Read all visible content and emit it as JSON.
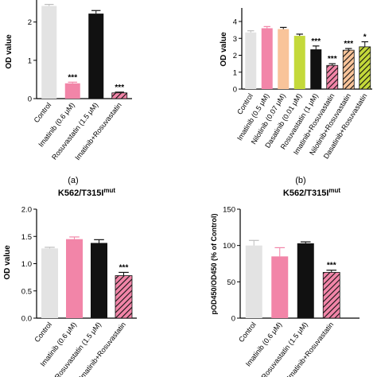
{
  "figure": {
    "panels": [
      {
        "id": "a",
        "caption": "(a)",
        "title": "",
        "title_superscript": "",
        "ylabel": "OD value",
        "yticks": [
          0,
          1,
          2
        ],
        "categories": [
          "Control",
          "Imatinib (0.6 μM)",
          "Rosuvastatin (1.5 μM)",
          "Imatinib+Rosuvastatin"
        ]
      },
      {
        "id": "b",
        "caption": "(b)",
        "title": "",
        "title_superscript": "",
        "ylabel": "OD value",
        "yticks": [
          0,
          1,
          2,
          3,
          4
        ],
        "categories": [
          "Control",
          "Imatinib (0.5 μM)",
          "Nilotinib (0.07 μM)",
          "Dasatinib (0.01 μM)",
          "Rosuvastatin (1 μM)",
          "Imatinib+Rosuvastatin",
          "Nilotinib+Rosuvastatin",
          "Dasatinib+Rosuvastatin"
        ]
      },
      {
        "id": "c",
        "caption": "",
        "title": "K562/T315I",
        "title_superscript": "mut",
        "ylabel": "OD value",
        "yticks": [
          "0.0",
          "0.5",
          "1.0",
          "1.5",
          "2.0"
        ],
        "categories": [
          "Control",
          "Imatinib (0.6 μM)",
          "Rosuvastatin (1.5 μM)",
          "Imatinib+Rosuvastatin"
        ]
      },
      {
        "id": "d",
        "caption": "",
        "title": "K562/T315I",
        "title_superscript": "mut",
        "ylabel": "pOD450/OD450 (% of Control)",
        "yticks": [
          0,
          50,
          100,
          150
        ],
        "categories": [
          "Control",
          "Imatinib (0.6 μM)",
          "Rosuvastatin (1.5 μM)",
          "Imatinib+Rosuvastatin"
        ]
      }
    ]
  },
  "colors": {
    "light_gray": "#e3e3e3",
    "pink": "#f285a8",
    "peach": "#f9c49a",
    "lime": "#c4d93a",
    "black": "#111111",
    "axis": "#000000"
  },
  "chart_data": [
    {
      "type": "bar",
      "panel": "a",
      "ylabel": "OD value",
      "ylim": [
        0,
        2.7
      ],
      "categories": [
        "Control",
        "Imatinib (0.6 μM)",
        "Rosuvastatin (1.5 μM)",
        "Imatinib+Rosuvastatin"
      ],
      "values": [
        2.42,
        0.4,
        2.22,
        0.15
      ],
      "errors": [
        0.04,
        0.03,
        0.08,
        0.02
      ],
      "significance": [
        "",
        "***",
        "",
        "***"
      ],
      "fills": [
        "light_gray",
        "pink",
        "black",
        "pink-hatched"
      ]
    },
    {
      "type": "bar",
      "panel": "b",
      "ylabel": "OD value",
      "ylim": [
        0,
        4.8
      ],
      "categories": [
        "Control",
        "Imatinib (0.5 μM)",
        "Nilotinib (0.07 μM)",
        "Dasatinib (0.01 μM)",
        "Rosuvastatin (1 μM)",
        "Imatinib+Rosuvastatin",
        "Nilotinib+Rosuvastatin",
        "Dasatinib+Rosuvastatin"
      ],
      "values": [
        3.35,
        3.6,
        3.55,
        3.15,
        2.35,
        1.4,
        2.3,
        2.5
      ],
      "errors": [
        0.1,
        0.1,
        0.1,
        0.1,
        0.2,
        0.1,
        0.1,
        0.3
      ],
      "significance": [
        "",
        "",
        "",
        "",
        "***",
        "***",
        "***",
        "*"
      ],
      "fills": [
        "light_gray",
        "pink",
        "peach",
        "lime",
        "black",
        "pink-hatched",
        "peach-hatched",
        "lime-hatched"
      ]
    },
    {
      "type": "bar",
      "panel": "c",
      "title": "K562/T315Imut",
      "ylabel": "OD value",
      "ylim": [
        0,
        2.0
      ],
      "categories": [
        "Control",
        "Imatinib (0.6 μM)",
        "Rosuvastatin (1.5 μM)",
        "Imatinib+Rosuvastatin"
      ],
      "values": [
        1.28,
        1.45,
        1.38,
        0.78
      ],
      "errors": [
        0.02,
        0.04,
        0.06,
        0.06
      ],
      "significance": [
        "",
        "",
        "",
        "***"
      ],
      "fills": [
        "light_gray",
        "pink",
        "black",
        "pink-hatched"
      ]
    },
    {
      "type": "bar",
      "panel": "d",
      "title": "K562/T315Imut",
      "ylabel": "pOD450/OD450 (% of Control)",
      "ylim": [
        0,
        150
      ],
      "categories": [
        "Control",
        "Imatinib (0.6 μM)",
        "Rosuvastatin (1.5 μM)",
        "Imatinib+Rosuvastatin"
      ],
      "values": [
        100,
        85,
        103,
        63
      ],
      "errors": [
        7,
        12,
        2,
        3
      ],
      "significance": [
        "",
        "",
        "",
        "***"
      ],
      "fills": [
        "light_gray",
        "pink",
        "black",
        "pink-hatched"
      ]
    }
  ]
}
